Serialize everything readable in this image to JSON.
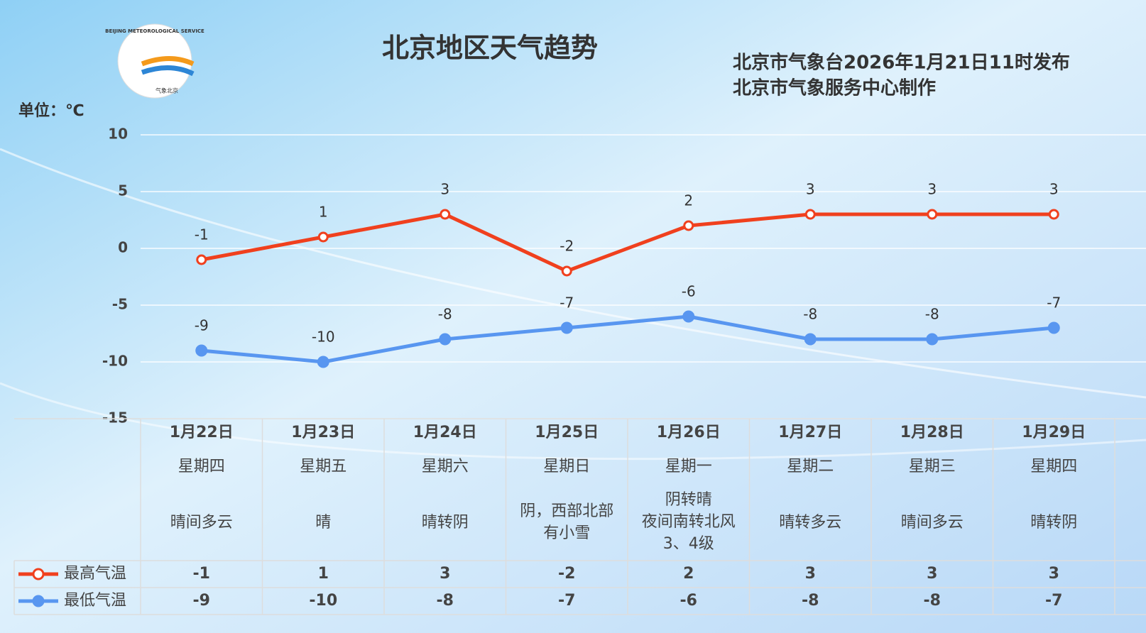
{
  "chart_data": {
    "type": "line",
    "title": "北京地区天气趋势",
    "unit_label": "单位：℃",
    "publisher": [
      "北京市气象台2026年1月21日11时发布",
      "北京市气象服务中心制作"
    ],
    "logo_text": [
      "BEIJING METEOROLOGICAL SERVICE",
      "气象北京"
    ],
    "categories": [
      "1月22日",
      "1月23日",
      "1月24日",
      "1月25日",
      "1月26日",
      "1月27日",
      "1月28日",
      "1月29日"
    ],
    "weekdays": [
      "星期四",
      "星期五",
      "星期六",
      "星期日",
      "星期一",
      "星期二",
      "星期三",
      "星期四"
    ],
    "weather": [
      [
        "晴间多云"
      ],
      [
        "晴"
      ],
      [
        "晴转阴"
      ],
      [
        "阴，西部北部",
        "有小雪"
      ],
      [
        "阴转晴",
        "夜间南转北风",
        "3、4级"
      ],
      [
        "晴转多云"
      ],
      [
        "晴间多云"
      ],
      [
        "晴转阴"
      ]
    ],
    "series": [
      {
        "name": "最高气温",
        "color": "#f0401e",
        "values": [
          -1,
          1,
          3,
          -2,
          2,
          3,
          3,
          3
        ]
      },
      {
        "name": "最低气温",
        "color": "#5896f0",
        "values": [
          -9,
          -10,
          -8,
          -7,
          -6,
          -8,
          -8,
          -7
        ]
      }
    ],
    "ylim": [
      -15,
      10
    ],
    "yticks": [
      -15,
      -10,
      -5,
      0,
      5,
      10
    ],
    "grid": true
  }
}
